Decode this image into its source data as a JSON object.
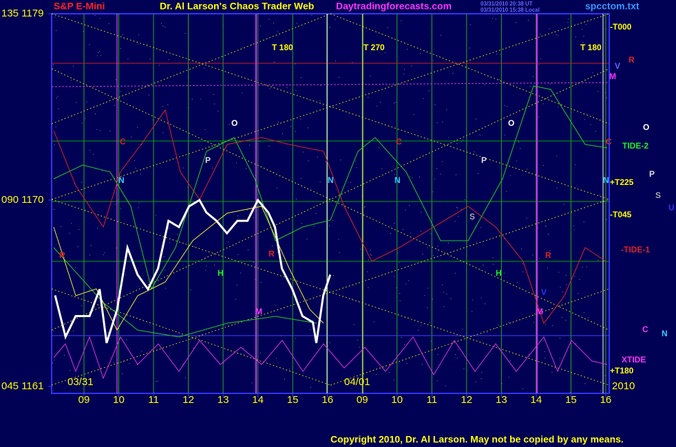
{
  "chart_data": {
    "type": "line",
    "header": {
      "symbol": "S&P E-Mini",
      "title": "Dr. Al Larson's Chaos Trader Web",
      "site": "Daytradingforecasts.com",
      "stamp1": "03/31/2010 20:38 UT",
      "stamp2": "03/31/2010 15:38 Local",
      "file": "spcctom.txt"
    },
    "footer": "Copyright 2010, Dr. Al Larson. May not be copied by any means.",
    "date_labels": [
      "03/31",
      "04/01",
      "2010"
    ],
    "annotations": [
      "T 180",
      "T 270",
      "T 180",
      "-T000",
      "V",
      "R",
      "M",
      "O",
      "O",
      "O",
      "C",
      "C",
      "C",
      "TIDE-2",
      "P",
      "P",
      "P",
      "N",
      "N",
      "N",
      "N",
      "+T225",
      "S",
      "U",
      "S",
      "-T045",
      "R",
      "R",
      "R",
      "-TIDE-1",
      "H",
      "H",
      "V",
      "M",
      "M",
      "C",
      "N",
      "XTIDE",
      "+T180"
    ],
    "xlim": [
      0.07,
      16.1
    ],
    "xticks": [
      {
        "value": 1,
        "label": "09"
      },
      {
        "value": 2,
        "label": "10"
      },
      {
        "value": 3,
        "label": "11"
      },
      {
        "value": 4,
        "label": "12"
      },
      {
        "value": 5,
        "label": "13"
      },
      {
        "value": 6,
        "label": "14"
      },
      {
        "value": 7,
        "label": "15"
      },
      {
        "value": 8,
        "label": "16"
      },
      {
        "value": 9,
        "label": "09"
      },
      {
        "value": 10,
        "label": "10"
      },
      {
        "value": 11,
        "label": "11"
      },
      {
        "value": 12,
        "label": "12"
      },
      {
        "value": 13,
        "label": "13"
      },
      {
        "value": 14,
        "label": "14"
      },
      {
        "value": 15,
        "label": "15"
      },
      {
        "value": 16,
        "label": "16"
      }
    ],
    "ylim": [
      1161,
      1179
    ],
    "yticks": [
      {
        "value": 1179,
        "label": "135 1179"
      },
      {
        "value": 1170,
        "label": "090 1170"
      },
      {
        "value": 1161,
        "label": "045 1161"
      }
    ],
    "grid": true,
    "series": [
      {
        "color": "#ffffff",
        "x": [
          0.17,
          0.47,
          0.76,
          1.16,
          1.45,
          1.65,
          1.95,
          2.25,
          2.54,
          2.84,
          3.13,
          3.43,
          3.73,
          4.02,
          4.32,
          4.52,
          4.81,
          5.11,
          5.41,
          5.7,
          6.0,
          6.3,
          6.49,
          6.69,
          6.99,
          7.28,
          7.58,
          7.68,
          7.88,
          8.08
        ],
        "values": [
          1165.4,
          1163.4,
          1164.4,
          1164.4,
          1165.7,
          1163.1,
          1164.7,
          1167.7,
          1166.4,
          1165.7,
          1166.7,
          1169.0,
          1168.7,
          1169.7,
          1170.0,
          1169.4,
          1169.0,
          1168.4,
          1169.0,
          1169.0,
          1170.0,
          1169.4,
          1168.7,
          1166.7,
          1165.7,
          1164.4,
          1164.1,
          1163.1,
          1165.4,
          1166.4
        ]
      }
    ]
  }
}
